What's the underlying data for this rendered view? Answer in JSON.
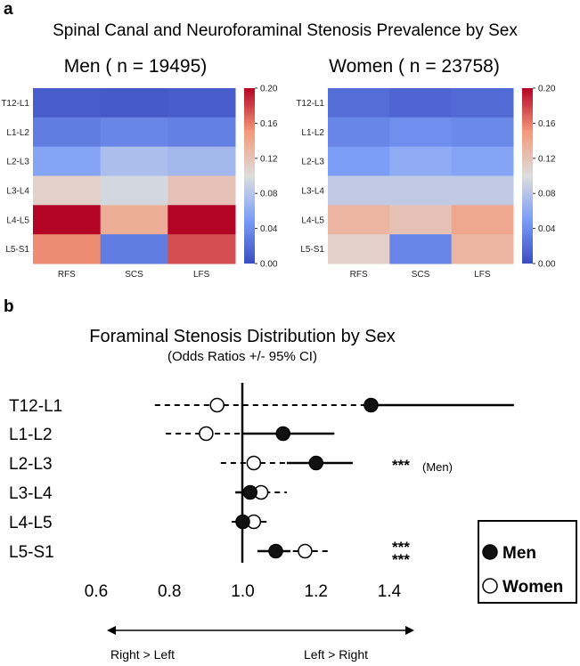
{
  "panels": {
    "a": "a",
    "b": "b"
  },
  "chart_data": [
    {
      "type": "heatmap",
      "title": "Spinal Canal and Neuroforaminal Stenosis Prevalence by Sex",
      "subtitle": "Men ( n = 19495)",
      "rows": [
        "T12-L1",
        "L1-L2",
        "L2-L3",
        "L3-L4",
        "L4-L5",
        "L5-S1"
      ],
      "columns": [
        "RFS",
        "SCS",
        "LFS"
      ],
      "values": [
        [
          0.01,
          0.008,
          0.01
        ],
        [
          0.03,
          0.035,
          0.032
        ],
        [
          0.055,
          0.075,
          0.07
        ],
        [
          0.11,
          0.095,
          0.12
        ],
        [
          0.2,
          0.135,
          0.2
        ],
        [
          0.155,
          0.03,
          0.175
        ]
      ],
      "colorbar": {
        "min": 0.0,
        "max": 0.2,
        "ticks": [
          "0.20",
          "0.16",
          "0.12",
          "0.08",
          "0.04",
          "0.00"
        ]
      },
      "colormap": "coolwarm"
    },
    {
      "type": "heatmap",
      "subtitle": "Women ( n = 23758)",
      "rows": [
        "T12-L1",
        "L1-L2",
        "L2-L3",
        "L3-L4",
        "L4-L5",
        "L5-S1"
      ],
      "columns": [
        "RFS",
        "SCS",
        "LFS"
      ],
      "values": [
        [
          0.02,
          0.015,
          0.018
        ],
        [
          0.035,
          0.04,
          0.037
        ],
        [
          0.05,
          0.06,
          0.055
        ],
        [
          0.085,
          0.085,
          0.085
        ],
        [
          0.13,
          0.12,
          0.14
        ],
        [
          0.11,
          0.035,
          0.13
        ]
      ],
      "colorbar": {
        "min": 0.0,
        "max": 0.2,
        "ticks": [
          "0.20",
          "0.16",
          "0.12",
          "0.08",
          "0.04",
          "0.00"
        ]
      },
      "colormap": "coolwarm"
    },
    {
      "type": "scatter",
      "title": "Foraminal Stenosis Distribution by Sex",
      "subtitle": "(Odds Ratios +/- 95% CI)",
      "categories": [
        "T12-L1",
        "L1-L2",
        "L2-L3",
        "L3-L4",
        "L4-L5",
        "L5-S1"
      ],
      "xlim": [
        0.6,
        1.4
      ],
      "xticks": [
        "0.6",
        "0.8",
        "1.0",
        "1.2",
        "1.4"
      ],
      "reference_line": 1.0,
      "series": [
        {
          "name": "Men",
          "marker": "filled",
          "or": [
            1.35,
            1.11,
            1.2,
            1.02,
            1.0,
            1.09
          ],
          "ci_low": [
            0.93,
            1.0,
            1.12,
            0.98,
            0.98,
            1.04
          ],
          "ci_high": [
            1.74,
            1.25,
            1.3,
            1.07,
            1.03,
            1.13
          ]
        },
        {
          "name": "Women",
          "marker": "open",
          "or": [
            0.93,
            0.9,
            1.03,
            1.05,
            1.03,
            1.17
          ],
          "ci_low": [
            0.76,
            0.79,
            0.94,
            0.98,
            0.97,
            1.11
          ],
          "ci_high": [
            1.34,
            1.0,
            1.13,
            1.12,
            1.07,
            1.24
          ]
        }
      ],
      "significance": [
        {
          "row": "L2-L3",
          "marks": [
            "***"
          ],
          "note": "(Men)"
        },
        {
          "row": "L5-S1",
          "marks": [
            "***",
            "***"
          ]
        }
      ],
      "arrows": {
        "left": "Right > Left",
        "right": "Left > Right"
      },
      "legend": [
        "Men",
        "Women"
      ]
    }
  ]
}
